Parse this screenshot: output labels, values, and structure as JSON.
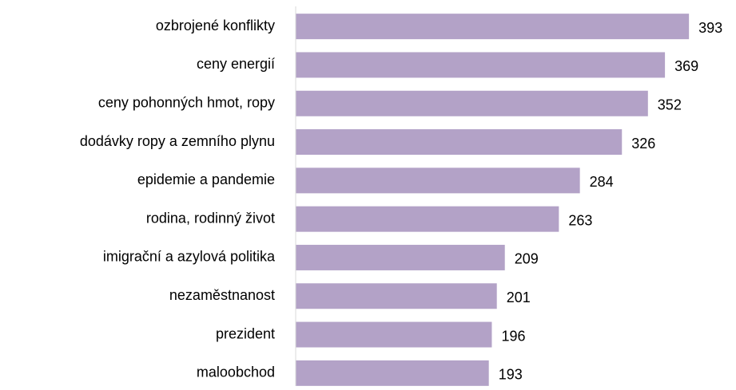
{
  "chart_data": {
    "type": "bar",
    "orientation": "horizontal",
    "categories": [
      "ozbrojené konflikty",
      "ceny energií",
      "ceny pohonných hmot, ropy",
      "dodávky ropy a zemního plynu",
      "epidemie a pandemie",
      "rodina, rodinný život",
      "imigrační a azylová politika",
      "nezaměstnanost",
      "prezident",
      "maloobchod"
    ],
    "values": [
      393,
      369,
      352,
      326,
      284,
      263,
      209,
      201,
      196,
      193
    ],
    "color": "#b3a2c7",
    "xlim": [
      0,
      440
    ]
  }
}
